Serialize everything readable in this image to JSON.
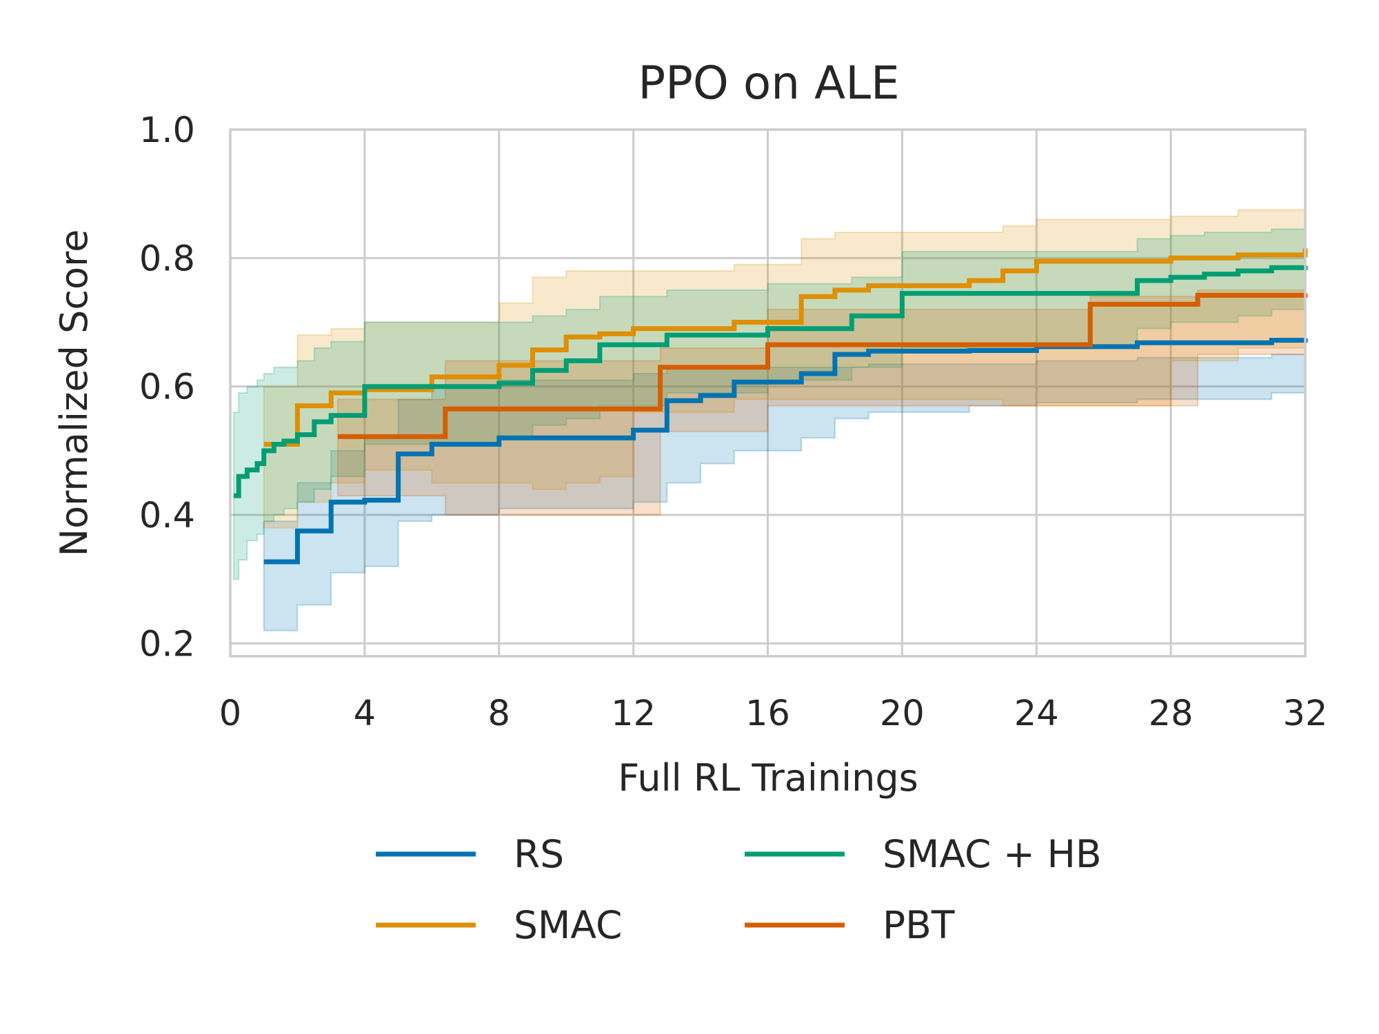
{
  "chart_data": {
    "type": "line",
    "title": "PPO on ALE",
    "xlabel": "Full RL Trainings",
    "ylabel": "Normalized Score",
    "xlim": [
      0,
      32
    ],
    "ylim": [
      0.18,
      1.0
    ],
    "xticks": [
      0,
      4,
      8,
      12,
      16,
      20,
      24,
      28,
      32
    ],
    "yticks": [
      0.2,
      0.4,
      0.6,
      0.8,
      1.0
    ],
    "xtick_labels": [
      "0",
      "4",
      "8",
      "12",
      "16",
      "20",
      "24",
      "28",
      "32"
    ],
    "ytick_labels": [
      "0.2",
      "0.4",
      "0.6",
      "0.8",
      "1.0"
    ],
    "grid": true,
    "legend_position": "bottom",
    "series": [
      {
        "name": "RS",
        "color": "#0173b2",
        "step": true,
        "x": [
          1,
          2,
          3,
          4,
          5,
          6,
          8,
          12,
          13,
          14,
          15,
          17,
          18,
          19,
          22,
          24,
          27,
          31,
          32
        ],
        "y": [
          0.327,
          0.375,
          0.42,
          0.423,
          0.495,
          0.51,
          0.52,
          0.532,
          0.578,
          0.586,
          0.607,
          0.62,
          0.65,
          0.655,
          0.656,
          0.662,
          0.668,
          0.672,
          0.675
        ],
        "lower": [
          0.22,
          0.26,
          0.31,
          0.32,
          0.39,
          0.4,
          0.41,
          0.42,
          0.45,
          0.48,
          0.5,
          0.52,
          0.55,
          0.56,
          0.57,
          0.575,
          0.58,
          0.59,
          0.595
        ],
        "upper": [
          0.39,
          0.45,
          0.5,
          0.52,
          0.58,
          0.6,
          0.61,
          0.62,
          0.63,
          0.63,
          0.63,
          0.63,
          0.63,
          0.635,
          0.635,
          0.64,
          0.645,
          0.65,
          0.66
        ]
      },
      {
        "name": "SMAC",
        "color": "#de8f05",
        "step": true,
        "x": [
          1,
          2,
          3,
          4,
          6,
          8,
          9,
          10,
          11,
          12,
          15,
          17,
          18,
          19,
          22,
          23,
          24,
          28,
          30,
          32
        ],
        "y": [
          0.51,
          0.57,
          0.59,
          0.595,
          0.615,
          0.633,
          0.657,
          0.677,
          0.682,
          0.69,
          0.7,
          0.74,
          0.75,
          0.757,
          0.765,
          0.78,
          0.795,
          0.8,
          0.805,
          0.815
        ],
        "lower": [
          0.38,
          0.42,
          0.45,
          0.47,
          0.45,
          0.45,
          0.44,
          0.45,
          0.46,
          0.56,
          0.58,
          0.58,
          0.58,
          0.58,
          0.58,
          0.57,
          0.57,
          0.64,
          0.66,
          0.67
        ],
        "upper": [
          0.6,
          0.68,
          0.69,
          0.7,
          0.7,
          0.73,
          0.77,
          0.78,
          0.78,
          0.78,
          0.79,
          0.83,
          0.84,
          0.84,
          0.84,
          0.85,
          0.86,
          0.865,
          0.875,
          0.875
        ]
      },
      {
        "name": "SMAC + HB",
        "color": "#029e73",
        "step": true,
        "x": [
          0.1,
          0.25,
          0.5,
          0.8,
          1.0,
          1.3,
          1.6,
          2.0,
          2.5,
          3.0,
          4.0,
          8.0,
          9.0,
          10.0,
          11.0,
          13.0,
          16.0,
          18.5,
          20.0,
          27.0,
          28.0,
          29.0,
          30.0,
          31.0,
          32.0
        ],
        "y": [
          0.43,
          0.46,
          0.47,
          0.48,
          0.5,
          0.51,
          0.515,
          0.525,
          0.545,
          0.555,
          0.6,
          0.605,
          0.625,
          0.64,
          0.665,
          0.68,
          0.69,
          0.71,
          0.745,
          0.765,
          0.77,
          0.775,
          0.78,
          0.785,
          0.788
        ],
        "lower": [
          0.3,
          0.33,
          0.36,
          0.37,
          0.39,
          0.4,
          0.41,
          0.42,
          0.44,
          0.46,
          0.51,
          0.52,
          0.54,
          0.55,
          0.57,
          0.59,
          0.61,
          0.63,
          0.66,
          0.69,
          0.7,
          0.7,
          0.71,
          0.72,
          0.72
        ],
        "upper": [
          0.56,
          0.59,
          0.6,
          0.61,
          0.62,
          0.63,
          0.63,
          0.64,
          0.66,
          0.67,
          0.7,
          0.7,
          0.71,
          0.72,
          0.74,
          0.75,
          0.76,
          0.77,
          0.81,
          0.83,
          0.835,
          0.84,
          0.84,
          0.845,
          0.85
        ]
      },
      {
        "name": "PBT",
        "color": "#d55e00",
        "step": true,
        "x": [
          3.2,
          6.4,
          12.8,
          16.0,
          25.6,
          28.8,
          32.0
        ],
        "y": [
          0.522,
          0.565,
          0.63,
          0.665,
          0.728,
          0.742,
          0.745
        ],
        "lower": [
          0.43,
          0.4,
          0.53,
          0.57,
          0.57,
          0.65,
          0.66
        ],
        "upper": [
          0.58,
          0.64,
          0.66,
          0.72,
          0.74,
          0.75,
          0.76
        ]
      }
    ]
  }
}
